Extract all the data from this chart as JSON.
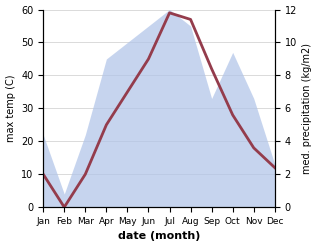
{
  "months": [
    "Jan",
    "Feb",
    "Mar",
    "Apr",
    "May",
    "Jun",
    "Jul",
    "Aug",
    "Sep",
    "Oct",
    "Nov",
    "Dec"
  ],
  "temperature": [
    10,
    0,
    10,
    25,
    35,
    45,
    59,
    57,
    42,
    28,
    18,
    12
  ],
  "precip_left_scale": [
    22,
    4,
    22,
    45,
    50,
    55,
    60,
    55,
    33,
    47,
    33,
    13
  ],
  "temp_color": "#943c4c",
  "precip_color": "#afc3e8",
  "title": "",
  "xlabel": "date (month)",
  "ylabel_left": "max temp (C)",
  "ylabel_right": "med. precipitation (kg/m2)",
  "ylim_left": [
    0,
    60
  ],
  "ylim_right": [
    0,
    12
  ],
  "yticks_left": [
    0,
    10,
    20,
    30,
    40,
    50,
    60
  ],
  "yticks_right": [
    0,
    2,
    4,
    6,
    8,
    10,
    12
  ],
  "background_color": "#ffffff",
  "grid_color": "#cccccc"
}
